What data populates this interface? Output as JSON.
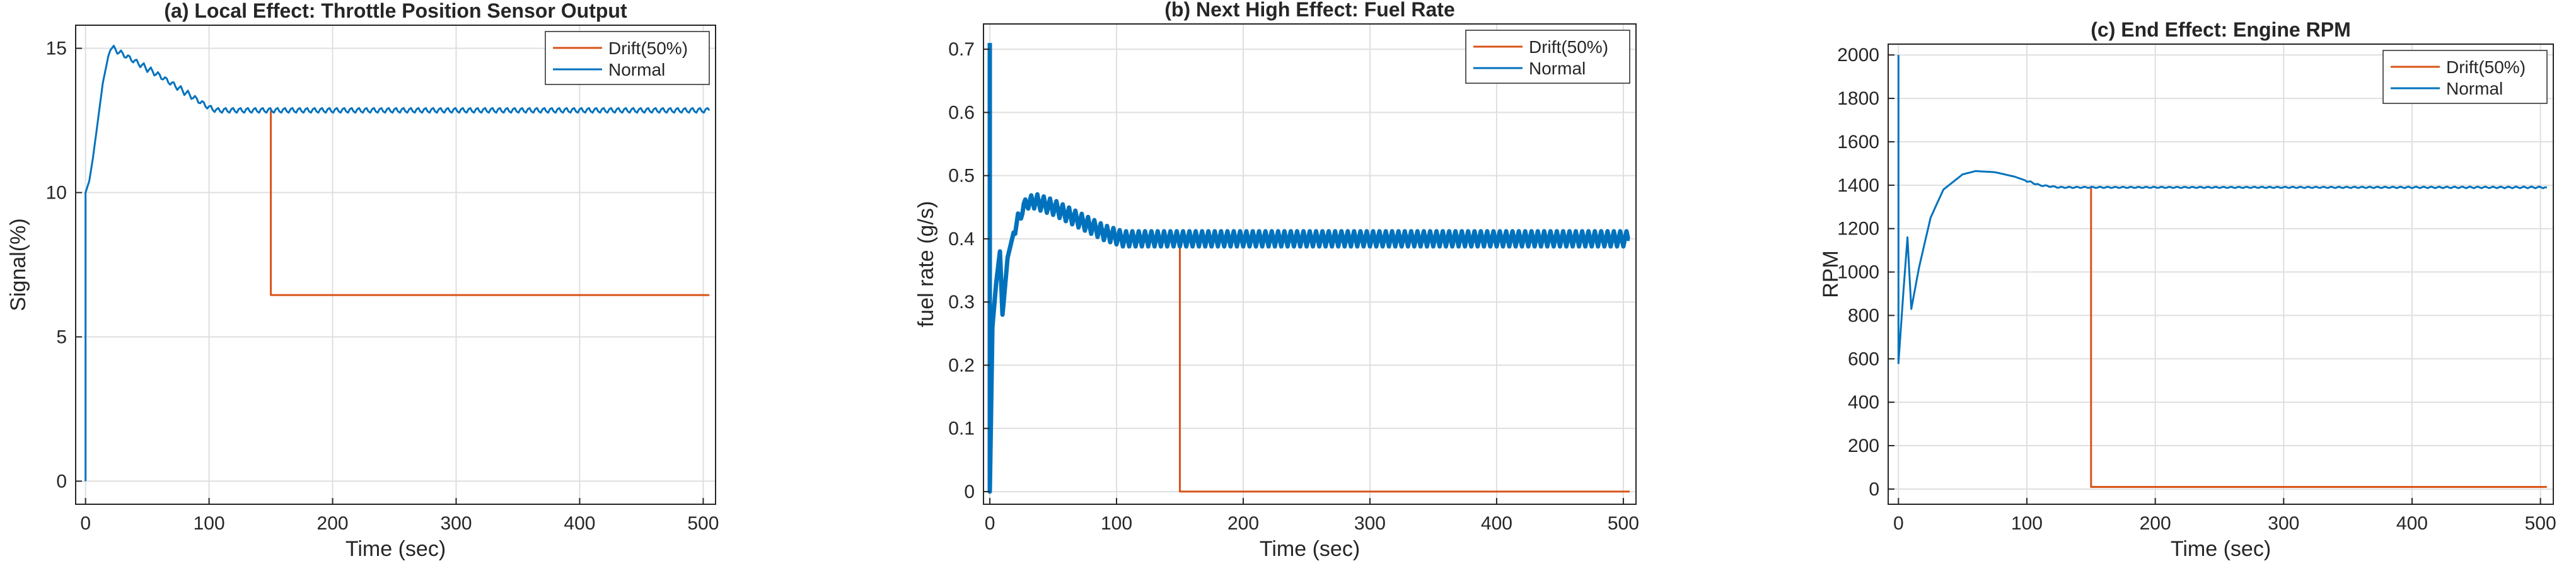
{
  "figure": {
    "background": "#ffffff",
    "axes_color": "#262626",
    "grid_color": "#dfdfdf"
  },
  "chart_data": [
    {
      "type": "line",
      "title": "(a) Local Effect: Throttle Position Sensor Output",
      "xlabel": "Time (sec)",
      "ylabel": "Signal(%)",
      "xlim": [
        -8,
        510
      ],
      "ylim": [
        -0.8,
        15.8
      ],
      "xticks": [
        0,
        100,
        200,
        300,
        400,
        500
      ],
      "yticks": [
        0,
        5,
        10,
        15
      ],
      "grid": true,
      "legend": {
        "position": "top-right",
        "entries": [
          "Drift(50%)",
          "Normal"
        ]
      },
      "series": [
        {
          "name": "Drift(50%)",
          "color": "#d95319",
          "shape": "step",
          "points": [
            [
              150,
              12.85
            ],
            [
              150,
              6.45
            ],
            [
              505,
              6.45
            ]
          ]
        },
        {
          "name": "Normal",
          "color": "#0072bd",
          "shape": "line",
          "points": [
            [
              0,
              0
            ],
            [
              0,
              10
            ],
            [
              3,
              10.4
            ],
            [
              6,
              11.2
            ],
            [
              10,
              12.5
            ],
            [
              14,
              13.8
            ],
            [
              20,
              15.05
            ],
            [
              40,
              14.55
            ],
            [
              60,
              14.05
            ],
            [
              80,
              13.5
            ],
            [
              100,
              12.95
            ],
            [
              106,
              12.85
            ],
            [
              505,
              12.85
            ]
          ],
          "ripple": {
            "from": 20,
            "to": 505,
            "period": 6,
            "amplitude": 0.12
          }
        }
      ]
    },
    {
      "type": "line",
      "title": "(b) Next High Effect: Fuel Rate",
      "xlabel": "Time (sec)",
      "ylabel": "fuel rate (g/s)",
      "xlim": [
        -5,
        510
      ],
      "ylim": [
        -0.02,
        0.74
      ],
      "xticks": [
        0,
        100,
        200,
        300,
        400,
        500
      ],
      "yticks": [
        0,
        0.1,
        0.2,
        0.3,
        0.4,
        0.5,
        0.6,
        0.7
      ],
      "grid": true,
      "legend": {
        "position": "top-right",
        "entries": [
          "Drift(50%)",
          "Normal"
        ]
      },
      "series": [
        {
          "name": "Drift(50%)",
          "color": "#d95319",
          "shape": "step",
          "points": [
            [
              150,
              0.4
            ],
            [
              150,
              0
            ],
            [
              505,
              0
            ]
          ]
        },
        {
          "name": "Normal",
          "color": "#0072bd",
          "shape": "line",
          "points": [
            [
              0,
              0.71
            ],
            [
              0,
              0
            ],
            [
              2,
              0.26
            ],
            [
              5,
              0.33
            ],
            [
              8,
              0.38
            ],
            [
              10,
              0.28
            ],
            [
              14,
              0.37
            ],
            [
              20,
              0.42
            ],
            [
              28,
              0.455
            ],
            [
              35,
              0.46
            ],
            [
              50,
              0.45
            ],
            [
              70,
              0.43
            ],
            [
              90,
              0.41
            ],
            [
              105,
              0.4
            ],
            [
              505,
              0.4
            ]
          ],
          "ripple": {
            "from": 20,
            "to": 505,
            "period": 5,
            "amplitude": 0.012
          }
        }
      ]
    },
    {
      "type": "line",
      "title": "(c) End Effect: Engine RPM",
      "xlabel": "Time (sec)",
      "ylabel": "RPM",
      "xlim": [
        -8,
        510
      ],
      "ylim": [
        -70,
        2050
      ],
      "xticks": [
        0,
        100,
        200,
        300,
        400,
        500
      ],
      "yticks": [
        0,
        200,
        400,
        600,
        800,
        1000,
        1200,
        1400,
        1600,
        1800,
        2000
      ],
      "grid": true,
      "legend": {
        "position": "top-right",
        "entries": [
          "Drift(50%)",
          "Normal"
        ]
      },
      "series": [
        {
          "name": "Drift(50%)",
          "color": "#d95319",
          "shape": "step",
          "points": [
            [
              150,
              1390
            ],
            [
              150,
              10
            ],
            [
              505,
              10
            ]
          ]
        },
        {
          "name": "Normal",
          "color": "#0072bd",
          "shape": "line",
          "points": [
            [
              0,
              2000
            ],
            [
              0,
              580
            ],
            [
              4,
              920
            ],
            [
              7,
              1160
            ],
            [
              10,
              830
            ],
            [
              16,
              1020
            ],
            [
              25,
              1250
            ],
            [
              35,
              1380
            ],
            [
              50,
              1450
            ],
            [
              60,
              1465
            ],
            [
              75,
              1460
            ],
            [
              90,
              1440
            ],
            [
              110,
              1400
            ],
            [
              125,
              1390
            ],
            [
              505,
              1390
            ]
          ],
          "ripple": {
            "from": 100,
            "to": 505,
            "period": 6,
            "amplitude": 4
          }
        }
      ]
    }
  ]
}
